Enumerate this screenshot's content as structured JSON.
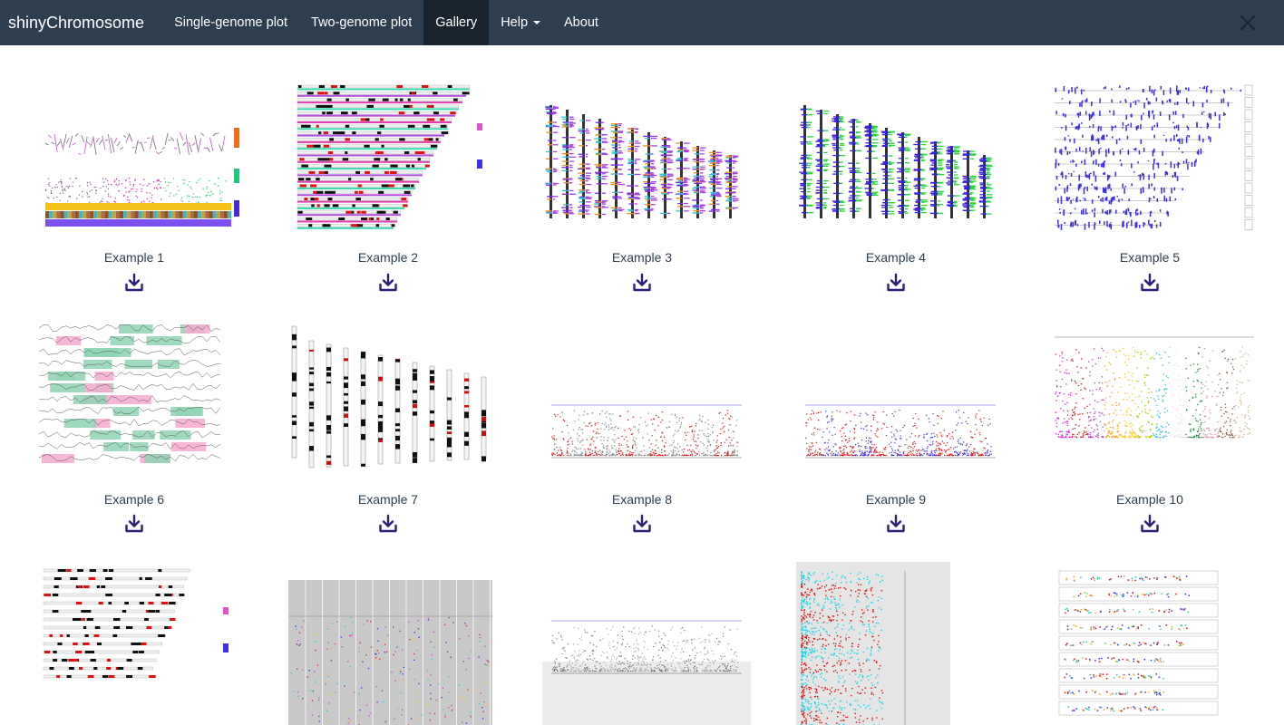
{
  "navbar": {
    "brand": "shinyChromosome",
    "items": [
      {
        "label": "Single-genome plot",
        "active": false
      },
      {
        "label": "Two-genome plot",
        "active": false
      },
      {
        "label": "Gallery",
        "active": true
      },
      {
        "label": "Help",
        "active": false,
        "dropdown": true
      },
      {
        "label": "About",
        "active": false
      }
    ],
    "close_icon": "close-icon"
  },
  "colors": {
    "navbar_bg": "#2c3e50",
    "navbar_active": "#1a242f",
    "download_icon": "#2a1f7a",
    "caption_text": "#2c3e50"
  },
  "gallery": {
    "download_icon": "download-icon",
    "examples": [
      {
        "caption": "Example 1",
        "kind": "multi-track"
      },
      {
        "caption": "Example 2",
        "kind": "horizontal-ideogram"
      },
      {
        "caption": "Example 3",
        "kind": "vertical-bars"
      },
      {
        "caption": "Example 4",
        "kind": "vertical-bars-blue"
      },
      {
        "caption": "Example 5",
        "kind": "horizontal-density"
      },
      {
        "caption": "Example 6",
        "kind": "horizontal-lines-highlight"
      },
      {
        "caption": "Example 7",
        "kind": "vertical-ideogram"
      },
      {
        "caption": "Example 8",
        "kind": "manhattan-red-grey"
      },
      {
        "caption": "Example 9",
        "kind": "manhattan-red-blue"
      },
      {
        "caption": "Example 10",
        "kind": "manhattan-rainbow"
      },
      {
        "caption": "",
        "kind": "horizontal-ideogram-small"
      },
      {
        "caption": "",
        "kind": "vertical-grey-panels"
      },
      {
        "caption": "",
        "kind": "manhattan-grey"
      },
      {
        "caption": "",
        "kind": "cyan-red-scatter"
      },
      {
        "caption": "",
        "kind": "horizontal-dot-panels"
      }
    ]
  }
}
